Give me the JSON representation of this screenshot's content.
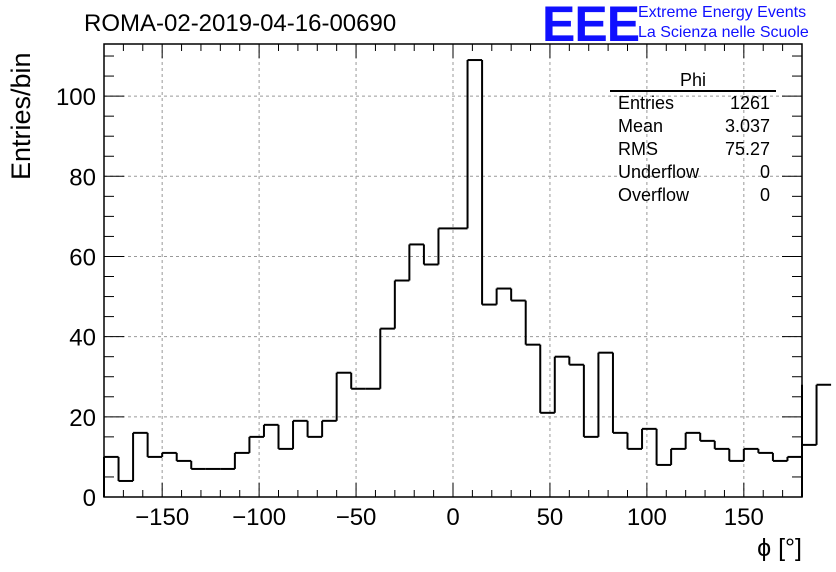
{
  "title": "ROMA-02-2019-04-16-00690",
  "logo": {
    "acronym": "EEE",
    "line1": "Extreme Energy Events",
    "line2": "La Scienza nelle Scuole",
    "color": "#1010ff"
  },
  "stats_box": {
    "name": "Phi",
    "rows": [
      {
        "label": "Entries",
        "value": "1261"
      },
      {
        "label": "Mean",
        "value": "3.037"
      },
      {
        "label": "RMS",
        "value": "75.27"
      },
      {
        "label": "Underflow",
        "value": "0"
      },
      {
        "label": "Overflow",
        "value": "0"
      }
    ]
  },
  "chart_data": {
    "type": "bar",
    "style": "step-histogram",
    "title": "ROMA-02-2019-04-16-00690",
    "xlabel": "ϕ [°]",
    "ylabel": "Entries/bin",
    "xlim": [
      -180,
      180
    ],
    "ylim": [
      0,
      113
    ],
    "bin_width": 7.5,
    "x_ticks": [
      -150,
      -100,
      -50,
      0,
      50,
      100,
      150
    ],
    "y_ticks": [
      0,
      20,
      40,
      60,
      80,
      100
    ],
    "x_tick_labels": [
      "−150",
      "−100",
      "−50",
      "0",
      "50",
      "100",
      "150"
    ],
    "y_tick_labels": [
      "0",
      "20",
      "40",
      "60",
      "80",
      "100"
    ],
    "grid": true,
    "bin_edges_start": -180,
    "values": [
      10,
      4,
      16,
      10,
      11,
      9,
      7,
      7,
      7,
      11,
      15,
      18,
      12,
      19,
      15,
      19,
      31,
      27,
      27,
      42,
      54,
      63,
      58,
      67,
      67,
      109,
      48,
      52,
      49,
      38,
      21,
      35,
      33,
      15,
      36,
      16,
      12,
      17,
      8,
      12,
      16,
      14,
      12,
      9,
      12,
      11,
      9,
      10,
      13,
      28
    ]
  }
}
